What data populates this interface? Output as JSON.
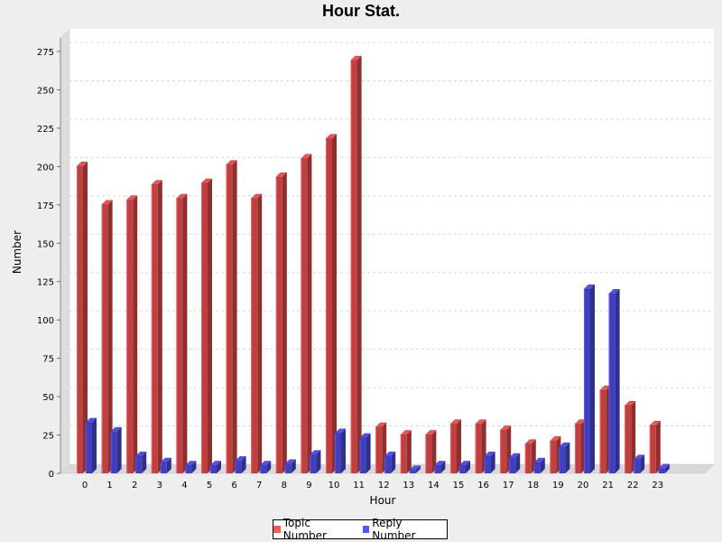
{
  "chart_data": {
    "type": "bar",
    "title": "Hour Stat.",
    "xlabel": "Hour",
    "ylabel": "Number",
    "categories": [
      "0",
      "1",
      "2",
      "3",
      "4",
      "5",
      "6",
      "7",
      "8",
      "9",
      "10",
      "11",
      "12",
      "13",
      "14",
      "15",
      "16",
      "17",
      "18",
      "19",
      "20",
      "21",
      "22",
      "23"
    ],
    "ylim": [
      0,
      285
    ],
    "yticks": [
      0,
      25,
      50,
      75,
      100,
      125,
      150,
      175,
      200,
      225,
      250,
      275
    ],
    "grid": true,
    "legend_position": "bottom",
    "style": "3d",
    "series": [
      {
        "name": "Topic Number",
        "color": "#ff5555",
        "values": [
          200,
          175,
          178,
          188,
          179,
          189,
          201,
          179,
          193,
          205,
          218,
          269,
          30,
          25,
          25,
          32,
          32,
          28,
          19,
          21,
          32,
          54,
          44,
          31
        ]
      },
      {
        "name": "Reply Number",
        "color": "#5555ff",
        "values": [
          33,
          27,
          11,
          7,
          5,
          5,
          8,
          5,
          6,
          12,
          26,
          23,
          11,
          2,
          5,
          5,
          11,
          10,
          7,
          17,
          120,
          117,
          9,
          3
        ]
      }
    ]
  }
}
